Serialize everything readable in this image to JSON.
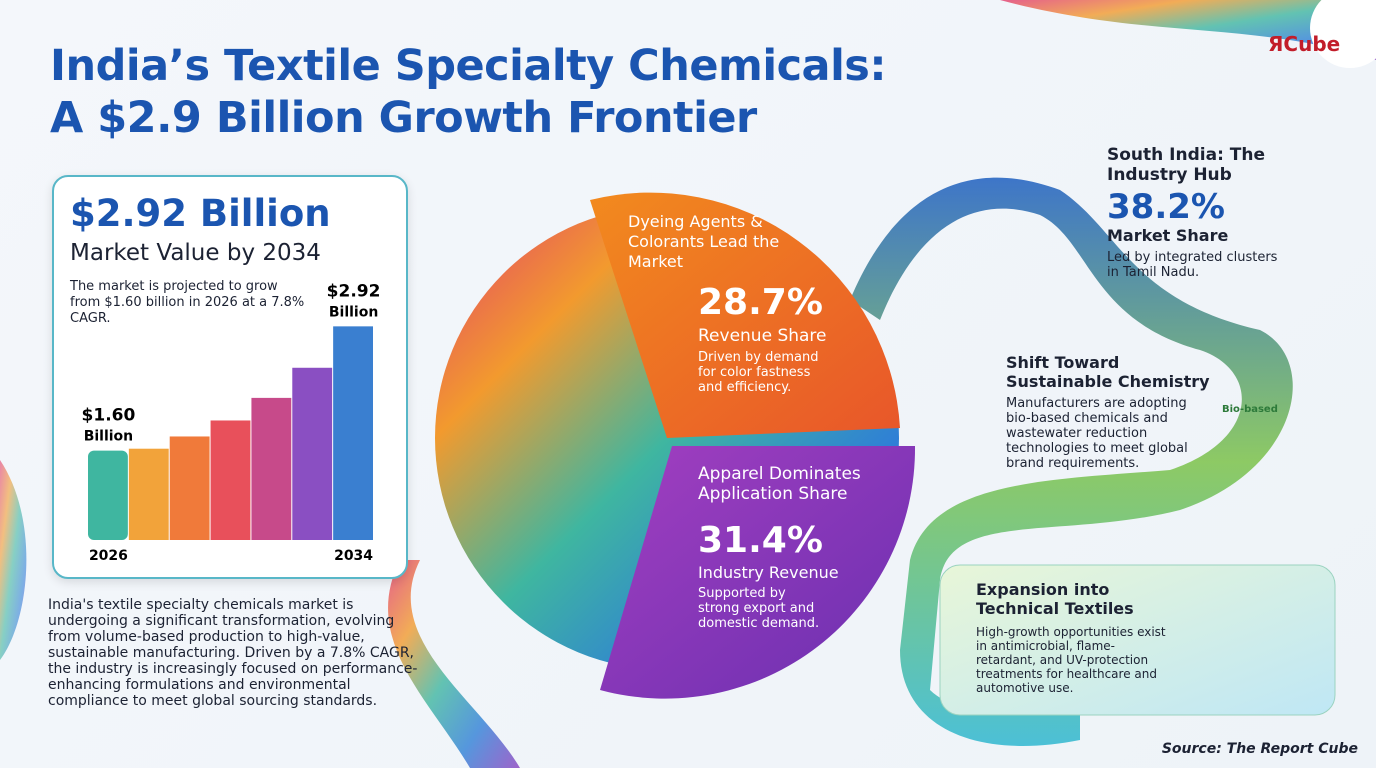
{
  "title": [
    "India’s Textile Specialty Chemicals:",
    "A $2.9 Billion Growth Frontier"
  ],
  "logo": "ЯCube",
  "market_card": {
    "headline": "$2.92 Billion",
    "subhead": "Market Value by 2034",
    "note": "The market is projected to grow from $1.60 billion in 2026 at a 7.8% CAGR."
  },
  "chart_data": {
    "type": "bar",
    "categories": [
      "2026",
      null,
      null,
      null,
      null,
      null,
      "2034"
    ],
    "values": [
      1.6,
      1.62,
      1.75,
      1.92,
      2.16,
      2.48,
      2.92
    ],
    "value_labels": [
      "$1.60 Billion",
      null,
      null,
      null,
      null,
      null,
      "$2.92 Billion"
    ],
    "colors": [
      "#3fb6a0",
      "#f2a33a",
      "#f07a3a",
      "#e8505b",
      "#c74a8a",
      "#8a4fc2",
      "#3a7fd0"
    ],
    "ylim": [
      0.65,
      3.2
    ]
  },
  "summary": "India's textile specialty chemicals market is undergoing a significant transformation, evolving from volume-based production to high-value, sustainable manufacturing. Driven by a 7.8% CAGR, the industry is increasingly focused on performance-enhancing formulations and environmental compliance to meet global sourcing standards.",
  "segments": [
    {
      "title": "Dyeing Agents & Colorants Lead the Market",
      "value": "28.7%",
      "metric": "Revenue Share",
      "note": "Driven by demand for color fastness and efficiency."
    },
    {
      "title": "Apparel Dominates Application Share",
      "value": "31.4%",
      "metric": "Industry Revenue",
      "note": "Supported by strong export and domestic demand."
    }
  ],
  "highlights": [
    {
      "title": "South India: The Industry Hub",
      "value": "38.2%",
      "metric": "Market Share",
      "note": "Led by integrated clusters in Tamil Nadu."
    },
    {
      "title": "Shift Toward Sustainable Chemistry",
      "note": "Manufacturers are adopting bio-based chemicals and wastewater reduction technologies to meet global brand requirements.",
      "badge": "Bio-based"
    },
    {
      "title": "Expansion into Technical Textiles",
      "note": "High-growth opportunities exist in antimicrobial, flame-retardant, and UV-protection treatments for healthcare and automotive use."
    }
  ],
  "source": "Source: The Report Cube"
}
